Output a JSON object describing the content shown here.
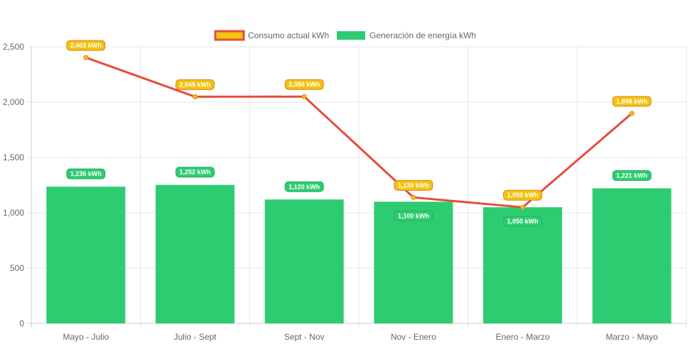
{
  "chart_data": {
    "type": "bar",
    "categories": [
      "Mayo - Julio",
      "Julio - Sept",
      "Sept - Nov",
      "Nov - Enero",
      "Enero - Marzo",
      "Marzo - Mayo"
    ],
    "ylim": [
      0,
      2500
    ],
    "yticks": [
      0,
      500,
      1000,
      1500,
      2000,
      2500
    ],
    "ytick_labels": [
      "0",
      "500",
      "1,000",
      "1,500",
      "2,000",
      "2,500"
    ],
    "grid": true,
    "legend_position": "top",
    "series": [
      {
        "name": "Consumo actual kWh",
        "type": "line",
        "values": [
          2403,
          2049,
          2050,
          1139,
          1050,
          1898
        ],
        "labels": [
          "2,403 kWh",
          "2,049 kWh",
          "2,050 kWh",
          "1,139 kWh",
          "1,050 kWh",
          "1,898 kWh"
        ],
        "color": "#e74c3c",
        "fill": "#f1c40f"
      },
      {
        "name": "Generación de energía kWh",
        "type": "bar",
        "values": [
          1236,
          1252,
          1120,
          1100,
          1050,
          1221
        ],
        "labels": [
          "1,236 kWh",
          "1,252 kWh",
          "1,120 kWh",
          "1,100 kWh",
          "1,050 kWh",
          "1,221 kWh"
        ],
        "color": "#2ecc71"
      }
    ]
  }
}
